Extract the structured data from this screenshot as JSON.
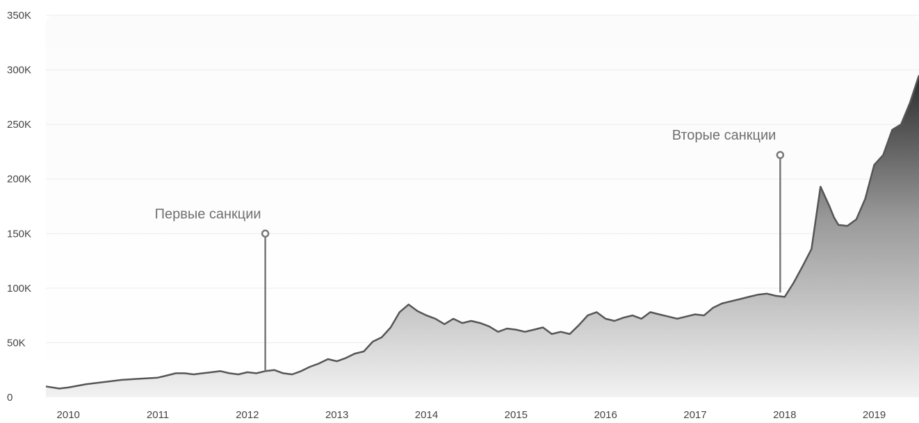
{
  "chart_data": {
    "type": "area",
    "title": "",
    "xlabel": "",
    "ylabel": "",
    "grid": true,
    "legend": "none",
    "x_range": [
      2009.75,
      2019.5
    ],
    "ylim": [
      0,
      350000
    ],
    "y_ticks": [
      {
        "value": 0,
        "label": "0"
      },
      {
        "value": 50000,
        "label": "50K"
      },
      {
        "value": 100000,
        "label": "100K"
      },
      {
        "value": 150000,
        "label": "150K"
      },
      {
        "value": 200000,
        "label": "200K"
      },
      {
        "value": 250000,
        "label": "250K"
      },
      {
        "value": 300000,
        "label": "300K"
      },
      {
        "value": 350000,
        "label": "350K"
      }
    ],
    "x_ticks": [
      {
        "value": 2010,
        "label": "2010"
      },
      {
        "value": 2011,
        "label": "2011"
      },
      {
        "value": 2012,
        "label": "2012"
      },
      {
        "value": 2013,
        "label": "2013"
      },
      {
        "value": 2014,
        "label": "2014"
      },
      {
        "value": 2015,
        "label": "2015"
      },
      {
        "value": 2016,
        "label": "2016"
      },
      {
        "value": 2017,
        "label": "2017"
      },
      {
        "value": 2018,
        "label": "2018"
      },
      {
        "value": 2019,
        "label": "2019"
      }
    ],
    "series": [
      {
        "color": "#555555",
        "x": [
          2009.75,
          2009.9,
          2010.0,
          2010.2,
          2010.4,
          2010.6,
          2010.8,
          2011.0,
          2011.1,
          2011.2,
          2011.3,
          2011.4,
          2011.5,
          2011.6,
          2011.7,
          2011.8,
          2011.9,
          2012.0,
          2012.1,
          2012.2,
          2012.3,
          2012.4,
          2012.5,
          2012.6,
          2012.7,
          2012.8,
          2012.9,
          2013.0,
          2013.1,
          2013.2,
          2013.3,
          2013.4,
          2013.5,
          2013.6,
          2013.7,
          2013.8,
          2013.9,
          2014.0,
          2014.1,
          2014.2,
          2014.3,
          2014.4,
          2014.5,
          2014.6,
          2014.7,
          2014.8,
          2014.9,
          2015.0,
          2015.1,
          2015.2,
          2015.3,
          2015.4,
          2015.5,
          2015.6,
          2015.7,
          2015.8,
          2015.9,
          2016.0,
          2016.1,
          2016.2,
          2016.3,
          2016.4,
          2016.5,
          2016.6,
          2016.7,
          2016.8,
          2016.9,
          2017.0,
          2017.1,
          2017.2,
          2017.3,
          2017.4,
          2017.5,
          2017.6,
          2017.7,
          2017.8,
          2017.9,
          2018.0,
          2018.1,
          2018.2,
          2018.3,
          2018.4,
          2018.5,
          2018.55,
          2018.6,
          2018.7,
          2018.8,
          2018.9,
          2019.0,
          2019.1,
          2019.2,
          2019.3,
          2019.4,
          2019.5
        ],
        "y": [
          10000,
          8000,
          9000,
          12000,
          14000,
          16000,
          17000,
          18000,
          20000,
          22000,
          22000,
          21000,
          22000,
          23000,
          24000,
          22000,
          21000,
          23000,
          22000,
          24000,
          25000,
          22000,
          21000,
          24000,
          28000,
          31000,
          35000,
          33000,
          36000,
          40000,
          42000,
          51000,
          55000,
          64000,
          78000,
          85000,
          79000,
          75000,
          72000,
          67000,
          72000,
          68000,
          70000,
          68000,
          65000,
          60000,
          63000,
          62000,
          60000,
          62000,
          64000,
          58000,
          60000,
          58000,
          66000,
          75000,
          78000,
          72000,
          70000,
          73000,
          75000,
          72000,
          78000,
          76000,
          74000,
          72000,
          74000,
          76000,
          75000,
          82000,
          86000,
          88000,
          90000,
          92000,
          94000,
          95000,
          93000,
          92000,
          105000,
          120000,
          136000,
          193000,
          175000,
          165000,
          158000,
          157000,
          163000,
          182000,
          213000,
          222000,
          245000,
          250000,
          270000,
          295000
        ]
      }
    ],
    "annotations": [
      {
        "label": "Первые санкции",
        "x": 2012.2,
        "y": 150000,
        "y_bottom": 24000
      },
      {
        "label": "Вторые санкции",
        "x": 2017.95,
        "y": 222000,
        "y_bottom": 96000
      }
    ]
  }
}
